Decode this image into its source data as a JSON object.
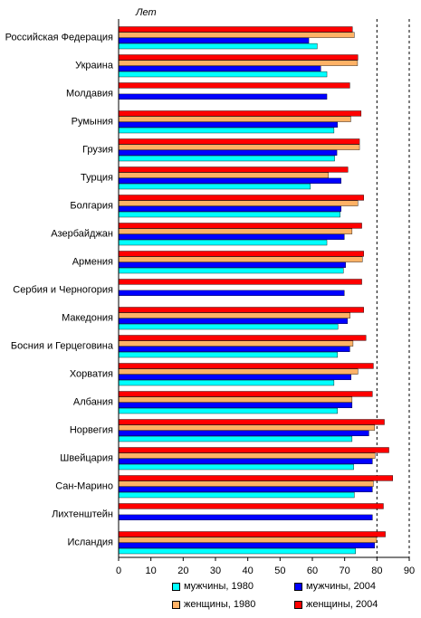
{
  "chart_data": {
    "type": "bar",
    "orientation": "horizontal",
    "unit_label": "Лет",
    "xlim": [
      0,
      90
    ],
    "xticks": [
      0,
      10,
      20,
      30,
      40,
      50,
      60,
      70,
      80,
      90
    ],
    "reference_lines": [
      80,
      90
    ],
    "categories": [
      "Российская Федерация",
      "Украина",
      "Молдавия",
      "Румыния",
      "Грузия",
      "Турция",
      "Болгария",
      "Азербайджан",
      "Армения",
      "Сербия и Черногория",
      "Македония",
      "Босния и Герцеговина",
      "Хорватия",
      "Албания",
      "Норвегия",
      "Швейцария",
      "Сан-Марино",
      "Лихтенштейн",
      "Исландия"
    ],
    "series": [
      {
        "name": "женщины, 2004",
        "color": "#ff0000",
        "values": [
          72.4,
          74.1,
          71.6,
          75.1,
          74.6,
          71.0,
          75.9,
          75.3,
          75.9,
          75.3,
          75.9,
          76.6,
          78.9,
          78.6,
          82.3,
          83.7,
          84.9,
          82.0,
          82.6
        ]
      },
      {
        "name": "женщины, 1980",
        "color": "#ffb266",
        "values": [
          73.0,
          74.0,
          null,
          71.9,
          74.6,
          65.0,
          74.1,
          72.3,
          75.5,
          null,
          71.7,
          72.6,
          74.1,
          72.3,
          79.3,
          79.4,
          78.9,
          null,
          79.9
        ]
      },
      {
        "name": "мужчины, 2004",
        "color": "#0000ff",
        "values": [
          58.9,
          62.6,
          64.5,
          67.8,
          67.6,
          68.9,
          68.9,
          69.9,
          70.3,
          69.9,
          70.9,
          71.6,
          72.0,
          72.3,
          77.5,
          78.6,
          78.6,
          78.6,
          79.3
        ]
      },
      {
        "name": "мужчины, 1980",
        "color": "#00ffff",
        "values": [
          61.5,
          64.5,
          null,
          66.7,
          66.9,
          59.4,
          68.6,
          64.5,
          69.6,
          null,
          67.9,
          67.8,
          66.7,
          67.8,
          72.3,
          72.8,
          73.0,
          null,
          73.4
        ]
      }
    ],
    "legend_order": [
      "мужчины, 1980",
      "мужчины, 2004",
      "женщины, 1980",
      "женщины, 2004"
    ],
    "legend_position": "bottom",
    "grid": false
  }
}
